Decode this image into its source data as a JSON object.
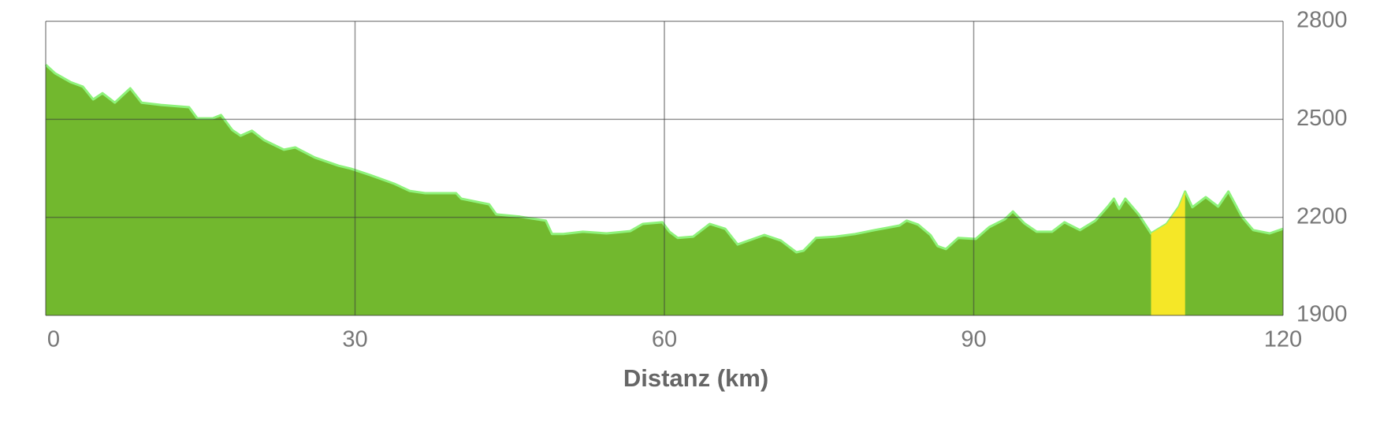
{
  "chart_data": {
    "type": "area",
    "x_label": "Distanz (km)",
    "xlim": [
      0,
      120
    ],
    "xticks": [
      0,
      30,
      60,
      90,
      120
    ],
    "ylim": [
      1900,
      2800
    ],
    "yticks": [
      1900,
      2200,
      2500,
      2800
    ],
    "grid": true,
    "series": [
      {
        "color": "#72b82e",
        "x": [
          0,
          0.9,
          2.4,
          3.6,
          4.6,
          5.5,
          6.7,
          8.2,
          9.3,
          11.2,
          13.9,
          14.7,
          16.2,
          17.0,
          18.1,
          18.9,
          20.0,
          21.2,
          23.1,
          24.2,
          26.1,
          28.4,
          29.6,
          31.5,
          33.8,
          35.3,
          36.8,
          39.8,
          40.3,
          43.0,
          43.7,
          46.0,
          48.5,
          49.1,
          50.2,
          52.1,
          54.4,
          56.7,
          57.9,
          59.8,
          60.5,
          61.3,
          62.8,
          64.4,
          65.9,
          67.1,
          69.7,
          71.3,
          72.0,
          72.8,
          73.5,
          74.7,
          76.6,
          78.5,
          80.4,
          82.8,
          83.5,
          84.6,
          85.8,
          86.5,
          87.3,
          88.5,
          90.2,
          91.5,
          93.0,
          93.8,
          94.9,
          96.1,
          97.6,
          98.8,
          100.3,
          101.8,
          103.0,
          103.6,
          104.1,
          104.7,
          106.0,
          107.2,
          108.7,
          109.9,
          110.5,
          111.2,
          112.5,
          113.7,
          114.7,
          116.0,
          117.1,
          118.7,
          120
        ],
        "values": [
          2667,
          2641,
          2614,
          2600,
          2561,
          2580,
          2551,
          2595,
          2551,
          2544,
          2537,
          2503,
          2503,
          2513,
          2467,
          2450,
          2465,
          2436,
          2407,
          2414,
          2383,
          2358,
          2349,
          2329,
          2303,
          2281,
          2274,
          2274,
          2257,
          2240,
          2209,
          2202,
          2190,
          2149,
          2149,
          2156,
          2151,
          2158,
          2180,
          2185,
          2156,
          2137,
          2141,
          2180,
          2165,
          2117,
          2146,
          2129,
          2112,
          2093,
          2098,
          2137,
          2141,
          2149,
          2161,
          2175,
          2190,
          2178,
          2146,
          2112,
          2103,
          2137,
          2134,
          2170,
          2194,
          2218,
          2182,
          2156,
          2156,
          2185,
          2161,
          2190,
          2233,
          2257,
          2226,
          2257,
          2209,
          2151,
          2180,
          2233,
          2279,
          2231,
          2262,
          2233,
          2279,
          2202,
          2161,
          2151,
          2165
        ]
      },
      {
        "color": "#f5e727",
        "x": [
          107.2,
          108.7,
          109.9,
          110.5
        ],
        "values": [
          2151,
          2180,
          2233,
          2279
        ]
      }
    ]
  }
}
